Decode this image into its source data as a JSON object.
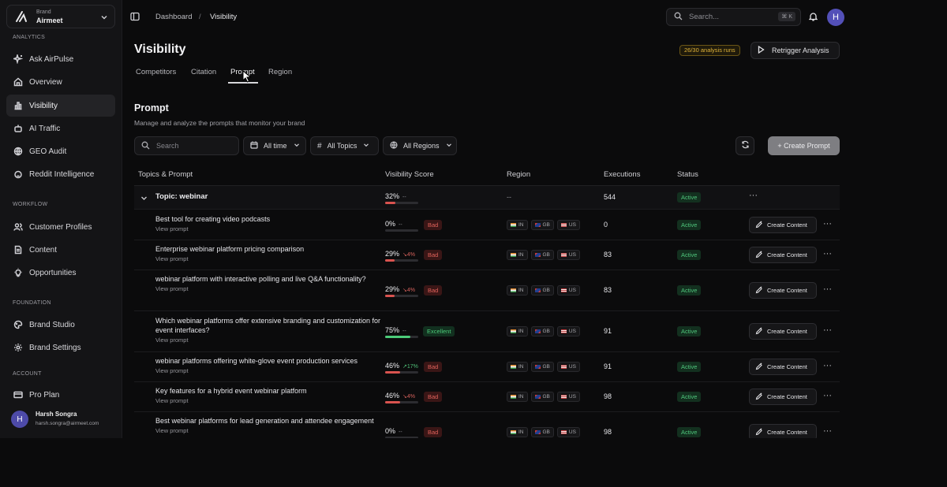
{
  "sidebar": {
    "brand_key": "Brand",
    "brand_value": "Airmeet",
    "sections": {
      "analytics": "ANALYTICS",
      "workflow": "WORKFLOW",
      "foundation": "FOUNDATION",
      "account": "ACCOUNT"
    },
    "items": [
      {
        "label": "Ask AirPulse",
        "icon": "sparkle-icon"
      },
      {
        "label": "Overview",
        "icon": "home-icon"
      },
      {
        "label": "Visibility",
        "icon": "bar-chart-icon",
        "active": true
      },
      {
        "label": "AI Traffic",
        "icon": "bot-icon"
      },
      {
        "label": "GEO Audit",
        "icon": "globe-icon"
      },
      {
        "label": "Reddit Intelligence",
        "icon": "reddit-icon"
      },
      {
        "label": "Customer Profiles",
        "icon": "users-icon"
      },
      {
        "label": "Content",
        "icon": "document-icon"
      },
      {
        "label": "Opportunities",
        "icon": "lightbulb-icon"
      },
      {
        "label": "Brand Studio",
        "icon": "palette-icon"
      },
      {
        "label": "Brand Settings",
        "icon": "gear-icon"
      },
      {
        "label": "Pro Plan",
        "icon": "credit-card-icon"
      }
    ],
    "user": {
      "initial": "H",
      "name": "Harsh Songra",
      "email": "harsh.songra@airmeet.com"
    }
  },
  "topbar": {
    "breadcrumb": [
      "Dashboard",
      "/",
      "Visibility"
    ],
    "search_placeholder": "Search...",
    "search_shortcut": "⌘ K",
    "avatar_initial": "H"
  },
  "header": {
    "title": "Visibility",
    "runs_badge": "26/30 analysis runs",
    "retrigger_label": "Retrigger Analysis",
    "tabs": [
      "Competitors",
      "Citation",
      "Prompt",
      "Region"
    ],
    "active_tab": "Prompt"
  },
  "section": {
    "title": "Prompt",
    "subtitle": "Manage and analyze the prompts that monitor your brand"
  },
  "filters": {
    "search_placeholder": "Search",
    "time": "All time",
    "topics": "All Topics",
    "regions": "All Regions",
    "create_label": "+ Create Prompt"
  },
  "table": {
    "columns": [
      "Topics & Prompt",
      "Visibility Score",
      "Region",
      "Executions",
      "Status"
    ],
    "topic": {
      "label": "Topic: webinar",
      "score": "32%",
      "score_value": 0.32,
      "trend": "--",
      "region": "--",
      "executions": "544",
      "status": "Active"
    },
    "view_prompt_label": "View prompt",
    "create_content_label": "Create Content",
    "region_codes": [
      "IN",
      "GB",
      "US"
    ],
    "rows": [
      {
        "prompt": "Best tool for creating video podcasts",
        "score": "0%",
        "score_value": 0.0,
        "trend": "--",
        "trend_dir": "flat",
        "badge": "Bad",
        "executions": "0",
        "status": "Active"
      },
      {
        "prompt": "Enterprise webinar platform pricing comparison",
        "score": "29%",
        "score_value": 0.29,
        "trend": "↘4%",
        "trend_dir": "down",
        "badge": "Bad",
        "executions": "83",
        "status": "Active"
      },
      {
        "prompt": "webinar platform with interactive polling and live Q&A functionality?",
        "score": "29%",
        "score_value": 0.29,
        "trend": "↘4%",
        "trend_dir": "down",
        "badge": "Bad",
        "executions": "83",
        "status": "Active"
      },
      {
        "prompt": "Which webinar platforms offer extensive branding and customization for event interfaces?",
        "score": "75%",
        "score_value": 0.75,
        "trend": "--",
        "trend_dir": "flat",
        "badge": "Excellent",
        "executions": "91",
        "status": "Active"
      },
      {
        "prompt": "webinar platforms offering white-glove event production services",
        "score": "46%",
        "score_value": 0.46,
        "trend": "↗17%",
        "trend_dir": "up",
        "badge": "Bad",
        "executions": "91",
        "status": "Active"
      },
      {
        "prompt": "Key features for a hybrid event webinar platform",
        "score": "46%",
        "score_value": 0.46,
        "trend": "↘4%",
        "trend_dir": "down",
        "badge": "Bad",
        "executions": "98",
        "status": "Active"
      },
      {
        "prompt": "Best webinar platforms for lead generation and attendee engagement",
        "score": "0%",
        "score_value": 0.0,
        "trend": "--",
        "trend_dir": "flat",
        "badge": "Bad",
        "executions": "98",
        "status": "Active"
      }
    ]
  },
  "colors": {
    "accent": "#5350b8",
    "bad": "#e0625b",
    "excellent": "#4ccb79",
    "warning": "#e0b33a",
    "bar_low": "#d9534f",
    "bar_high": "#4ccb79"
  }
}
